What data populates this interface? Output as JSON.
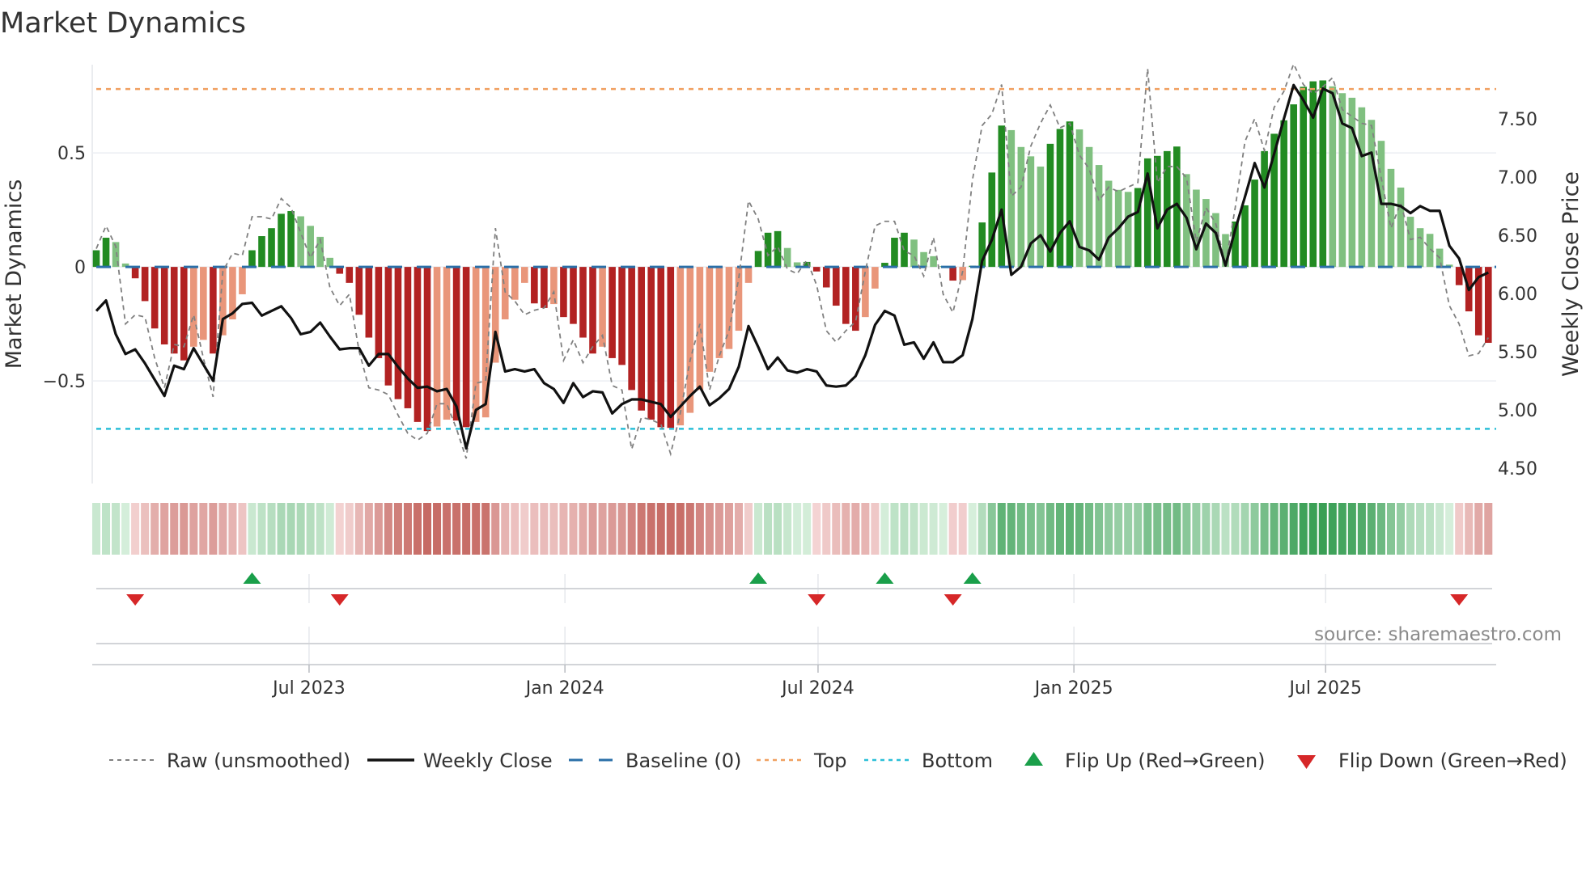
{
  "colors": {
    "up_strong": "#228b22",
    "up_weak": "#80c080",
    "down_strong": "#b22222",
    "down_weak": "#e9967a",
    "raw": "#808080",
    "close": "#111111",
    "baseline": "#2a6fa8",
    "top": "#f0a060",
    "bottom": "#2bbfd8",
    "flip_up": "#1a9f4a",
    "flip_down": "#d62728",
    "strip_pos_light": "#d7efdc",
    "strip_pos_dark": "#3a9f55",
    "strip_neg_light": "#f5d6d6",
    "strip_neg_dark": "#c66a64"
  },
  "chart_data": {
    "type": "bar+line",
    "title": "Market Dynamics",
    "source": "source: sharemaestro.com",
    "x": {
      "start": "2023-01-29",
      "step_days": 7,
      "ticks": [
        {
          "label": "Jul 2023",
          "date": "2023-07-01"
        },
        {
          "label": "Jan 2024",
          "date": "2024-01-01"
        },
        {
          "label": "Jul 2024",
          "date": "2024-07-01"
        },
        {
          "label": "Jan 2025",
          "date": "2025-01-01"
        },
        {
          "label": "Jul 2025",
          "date": "2025-07-01"
        }
      ]
    },
    "left_axis": {
      "label": "Market Dynamics",
      "range": [
        -0.95,
        0.887
      ],
      "ticks": [
        {
          "value": 0.5,
          "label": "0.5"
        },
        {
          "value": 0,
          "label": "0"
        },
        {
          "value": -0.5,
          "label": "−0.5"
        }
      ]
    },
    "right_axis": {
      "label": "Weekly Close Price",
      "range": [
        4.368,
        7.965
      ],
      "ticks": [
        {
          "value": 4.5,
          "label": "4.50"
        },
        {
          "value": 5.0,
          "label": "5.00"
        },
        {
          "value": 5.5,
          "label": "5.50"
        },
        {
          "value": 6.0,
          "label": "6.00"
        },
        {
          "value": 6.5,
          "label": "6.50"
        },
        {
          "value": 7.0,
          "label": "7.00"
        },
        {
          "value": 7.5,
          "label": "7.50"
        }
      ]
    },
    "levels": {
      "baseline": 0,
      "top": 0.78,
      "bottom": -0.71
    },
    "series": {
      "smoothed": [
        0.073,
        0.128,
        0.109,
        0.015,
        -0.05,
        -0.15,
        -0.27,
        -0.34,
        -0.38,
        -0.41,
        -0.35,
        -0.32,
        -0.38,
        -0.3,
        -0.23,
        -0.12,
        0.073,
        0.135,
        0.17,
        0.233,
        0.245,
        0.222,
        0.18,
        0.132,
        0.04,
        -0.03,
        -0.07,
        -0.21,
        -0.31,
        -0.4,
        -0.52,
        -0.58,
        -0.62,
        -0.68,
        -0.72,
        -0.7,
        -0.67,
        -0.674,
        -0.703,
        -0.68,
        -0.66,
        -0.42,
        -0.23,
        -0.144,
        -0.07,
        -0.16,
        -0.18,
        -0.163,
        -0.22,
        -0.25,
        -0.31,
        -0.38,
        -0.35,
        -0.4,
        -0.43,
        -0.54,
        -0.63,
        -0.67,
        -0.703,
        -0.706,
        -0.695,
        -0.64,
        -0.54,
        -0.46,
        -0.4,
        -0.36,
        -0.28,
        -0.07,
        0.07,
        0.15,
        0.157,
        0.083,
        0.02,
        0.022,
        -0.02,
        -0.09,
        -0.17,
        -0.25,
        -0.28,
        -0.22,
        -0.095,
        0.018,
        0.128,
        0.15,
        0.12,
        0.065,
        0.047,
        0.004,
        -0.06,
        -0.058,
        0.005,
        0.195,
        0.414,
        0.62,
        0.6,
        0.526,
        0.485,
        0.44,
        0.54,
        0.605,
        0.638,
        0.603,
        0.526,
        0.447,
        0.378,
        0.338,
        0.329,
        0.346,
        0.476,
        0.487,
        0.508,
        0.528,
        0.407,
        0.339,
        0.298,
        0.236,
        0.144,
        0.199,
        0.27,
        0.383,
        0.508,
        0.584,
        0.643,
        0.713,
        0.79,
        0.814,
        0.818,
        0.792,
        0.762,
        0.742,
        0.7,
        0.645,
        0.553,
        0.43,
        0.348,
        0.22,
        0.17,
        0.145,
        0.08,
        0.01,
        -0.08,
        -0.195,
        -0.3,
        -0.333
      ],
      "raw": [
        0.08,
        0.18,
        0.09,
        -0.25,
        -0.21,
        -0.22,
        -0.4,
        -0.53,
        -0.34,
        -0.35,
        -0.21,
        -0.4,
        -0.57,
        -0.02,
        0.06,
        0.05,
        0.22,
        0.22,
        0.21,
        0.3,
        0.26,
        0.15,
        0.04,
        0.12,
        -0.09,
        -0.17,
        -0.12,
        -0.37,
        -0.53,
        -0.54,
        -0.56,
        -0.65,
        -0.73,
        -0.76,
        -0.73,
        -0.6,
        -0.6,
        -0.71,
        -0.84,
        -0.51,
        -0.5,
        0.17,
        -0.11,
        -0.15,
        -0.21,
        -0.19,
        -0.18,
        -0.11,
        -0.41,
        -0.32,
        -0.42,
        -0.35,
        -0.3,
        -0.52,
        -0.54,
        -0.8,
        -0.66,
        -0.67,
        -0.69,
        -0.82,
        -0.64,
        -0.41,
        -0.25,
        -0.54,
        -0.39,
        -0.28,
        -0.05,
        0.29,
        0.21,
        0.05,
        0.09,
        -0.01,
        -0.03,
        0.03,
        -0.08,
        -0.28,
        -0.33,
        -0.28,
        -0.24,
        -0.02,
        0.18,
        0.2,
        0.2,
        0.07,
        0.05,
        -0.04,
        0.13,
        -0.12,
        -0.2,
        -0.02,
        0.38,
        0.62,
        0.67,
        0.8,
        0.31,
        0.35,
        0.53,
        0.63,
        0.71,
        0.61,
        0.63,
        0.49,
        0.43,
        0.29,
        0.35,
        0.33,
        0.35,
        0.37,
        0.87,
        0.37,
        0.44,
        0.44,
        0.39,
        0.11,
        0.26,
        0.19,
        0.01,
        0.26,
        0.55,
        0.65,
        0.51,
        0.7,
        0.77,
        0.89,
        0.8,
        0.76,
        0.79,
        0.83,
        0.69,
        0.66,
        0.63,
        0.62,
        0.39,
        0.17,
        0.28,
        0.12,
        0.13,
        0.08,
        0.04,
        -0.17,
        -0.25,
        -0.39,
        -0.38,
        -0.31
      ],
      "close": [
        5.85,
        5.94,
        5.65,
        5.48,
        5.52,
        5.4,
        5.26,
        5.12,
        5.38,
        5.35,
        5.53,
        5.39,
        5.25,
        5.78,
        5.83,
        5.91,
        5.92,
        5.81,
        5.85,
        5.89,
        5.79,
        5.65,
        5.67,
        5.75,
        5.63,
        5.52,
        5.53,
        5.53,
        5.38,
        5.48,
        5.48,
        5.37,
        5.27,
        5.19,
        5.2,
        5.16,
        5.18,
        5.03,
        4.67,
        5.0,
        5.05,
        5.67,
        5.33,
        5.35,
        5.33,
        5.35,
        5.23,
        5.18,
        5.06,
        5.23,
        5.11,
        5.16,
        5.15,
        4.97,
        5.05,
        5.09,
        5.09,
        5.07,
        5.05,
        4.94,
        5.03,
        5.12,
        5.2,
        5.04,
        5.1,
        5.18,
        5.37,
        5.72,
        5.54,
        5.35,
        5.45,
        5.34,
        5.32,
        5.35,
        5.33,
        5.21,
        5.2,
        5.21,
        5.29,
        5.47,
        5.73,
        5.85,
        5.81,
        5.56,
        5.58,
        5.44,
        5.58,
        5.41,
        5.41,
        5.47,
        5.78,
        6.28,
        6.46,
        6.72,
        6.16,
        6.23,
        6.43,
        6.5,
        6.36,
        6.52,
        6.62,
        6.4,
        6.37,
        6.29,
        6.48,
        6.56,
        6.66,
        6.7,
        7.03,
        6.56,
        6.72,
        6.77,
        6.65,
        6.38,
        6.6,
        6.52,
        6.24,
        6.55,
        6.83,
        7.12,
        6.91,
        7.2,
        7.5,
        7.79,
        7.66,
        7.51,
        7.76,
        7.72,
        7.46,
        7.42,
        7.18,
        7.21,
        6.77,
        6.77,
        6.75,
        6.69,
        6.75,
        6.71,
        6.71,
        6.41,
        6.3,
        6.03,
        6.14,
        6.18
      ]
    },
    "flips": {
      "up_weeks": [
        17,
        69,
        82,
        91
      ],
      "down_weeks": [
        5,
        26,
        75,
        89,
        141
      ]
    },
    "legend": {
      "raw": "Raw (unsmoothed)",
      "close": "Weekly Close",
      "baseline": "Baseline (0)",
      "top": "Top",
      "bottom": "Bottom",
      "flip_up": "Flip Up (Red→Green)",
      "flip_down": "Flip Down (Green→Red)"
    }
  }
}
